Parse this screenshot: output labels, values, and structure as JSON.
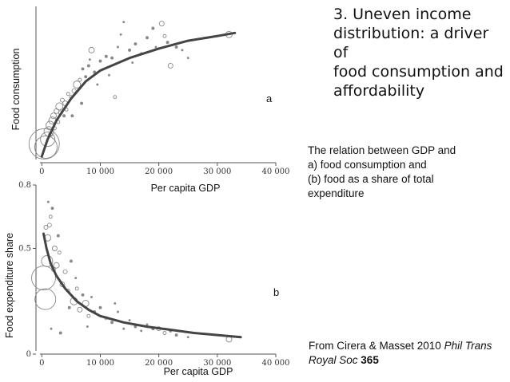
{
  "title": {
    "lines": [
      "3. Uneven income",
      "distribution: a driver of",
      "food consumption and",
      "affordability"
    ]
  },
  "description": {
    "lines": [
      "The relation between GDP and",
      "a) food consumption and",
      "(b) food as a share of total",
      "expenditure"
    ]
  },
  "source": {
    "prefix": "From Cirera & Masset 2010 ",
    "journal": "Phil Trans Royal Soc",
    "volume": "365"
  },
  "chart_data": [
    {
      "type": "scatter",
      "panel_label": "a",
      "xlabel": "Per capita GDP",
      "ylabel": "Food consumption",
      "xlim": [
        -1000,
        40000
      ],
      "ylim": [
        0,
        100
      ],
      "x_ticks": [
        0,
        10000,
        20000,
        30000,
        40000
      ],
      "x_tick_labels": [
        "0",
        "10 000",
        "20 000",
        "30 000",
        "40 000"
      ],
      "y_ticks": [],
      "y_tick_labels": [],
      "colors": {
        "points": "#888888",
        "fit": "#444444",
        "axis": "#555555"
      },
      "points": [
        {
          "x": 400,
          "y": 12,
          "s": 38
        },
        {
          "x": 700,
          "y": 10,
          "s": 28
        },
        {
          "x": 1000,
          "y": 15,
          "s": 18
        },
        {
          "x": 1200,
          "y": 20,
          "s": 12
        },
        {
          "x": 1400,
          "y": 24,
          "s": 10
        },
        {
          "x": 1800,
          "y": 27,
          "s": 9
        },
        {
          "x": 2000,
          "y": 30,
          "s": 7
        },
        {
          "x": 2500,
          "y": 33,
          "s": 6
        },
        {
          "x": 3000,
          "y": 36,
          "s": 9
        },
        {
          "x": 3200,
          "y": 32,
          "s": 5
        },
        {
          "x": 3500,
          "y": 40,
          "s": 5
        },
        {
          "x": 4000,
          "y": 38,
          "s": 6
        },
        {
          "x": 4200,
          "y": 34,
          "s": 4
        },
        {
          "x": 4500,
          "y": 44,
          "s": 4
        },
        {
          "x": 5000,
          "y": 42,
          "s": 4
        },
        {
          "x": 5500,
          "y": 46,
          "s": 5
        },
        {
          "x": 6000,
          "y": 50,
          "s": 9
        },
        {
          "x": 6500,
          "y": 53,
          "s": 4
        },
        {
          "x": 7000,
          "y": 60,
          "s": 3
        },
        {
          "x": 7500,
          "y": 55,
          "s": 3
        },
        {
          "x": 8000,
          "y": 62,
          "s": 3
        },
        {
          "x": 8500,
          "y": 72,
          "s": 7
        },
        {
          "x": 9000,
          "y": 58,
          "s": 3
        },
        {
          "x": 10000,
          "y": 65,
          "s": 3
        },
        {
          "x": 11000,
          "y": 68,
          "s": 3
        },
        {
          "x": 12000,
          "y": 67,
          "s": 3
        },
        {
          "x": 12500,
          "y": 42,
          "s": 4
        },
        {
          "x": 13000,
          "y": 74,
          "s": 2
        },
        {
          "x": 14000,
          "y": 90,
          "s": 2
        },
        {
          "x": 15000,
          "y": 72,
          "s": 3
        },
        {
          "x": 16000,
          "y": 76,
          "s": 3
        },
        {
          "x": 17000,
          "y": 70,
          "s": 2
        },
        {
          "x": 18000,
          "y": 80,
          "s": 3
        },
        {
          "x": 19000,
          "y": 86,
          "s": 3
        },
        {
          "x": 20500,
          "y": 89,
          "s": 6
        },
        {
          "x": 21000,
          "y": 81,
          "s": 4
        },
        {
          "x": 21500,
          "y": 77,
          "s": 3
        },
        {
          "x": 22000,
          "y": 62,
          "s": 6
        },
        {
          "x": 23000,
          "y": 74,
          "s": 3
        },
        {
          "x": 24000,
          "y": 72,
          "s": 2
        },
        {
          "x": 25000,
          "y": 67,
          "s": 2
        },
        {
          "x": 32000,
          "y": 82,
          "s": 8
        },
        {
          "x": 1500,
          "y": 18,
          "s": 5
        },
        {
          "x": 2200,
          "y": 22,
          "s": 4
        },
        {
          "x": 2800,
          "y": 26,
          "s": 4
        },
        {
          "x": 3800,
          "y": 30,
          "s": 3
        },
        {
          "x": 6800,
          "y": 38,
          "s": 3
        },
        {
          "x": 9500,
          "y": 50,
          "s": 2
        },
        {
          "x": 11500,
          "y": 56,
          "s": 2
        },
        {
          "x": 13500,
          "y": 82,
          "s": 2
        },
        {
          "x": 15500,
          "y": 64,
          "s": 2
        },
        {
          "x": 19500,
          "y": 74,
          "s": 2
        },
        {
          "x": 8200,
          "y": 66,
          "s": 2
        },
        {
          "x": 5200,
          "y": 30,
          "s": 3
        }
      ],
      "fit_line": [
        {
          "x": 0,
          "y": 4
        },
        {
          "x": 1000,
          "y": 15
        },
        {
          "x": 2500,
          "y": 27
        },
        {
          "x": 5000,
          "y": 41
        },
        {
          "x": 7500,
          "y": 52
        },
        {
          "x": 10000,
          "y": 59
        },
        {
          "x": 15000,
          "y": 67
        },
        {
          "x": 20000,
          "y": 73
        },
        {
          "x": 25000,
          "y": 78
        },
        {
          "x": 30000,
          "y": 81
        },
        {
          "x": 33000,
          "y": 83
        }
      ]
    },
    {
      "type": "scatter",
      "panel_label": "b",
      "xlabel": "Per capita GDP",
      "ylabel": "Food expenditure share",
      "xlim": [
        -1000,
        40000
      ],
      "ylim": [
        0,
        0.8
      ],
      "x_ticks": [
        0,
        10000,
        20000,
        30000,
        40000
      ],
      "x_tick_labels": [
        "0",
        "10 000",
        "20 000",
        "30 000",
        "40 000"
      ],
      "y_ticks": [
        0,
        0.5,
        0.8
      ],
      "y_tick_labels": [
        "0",
        "0.5",
        "0.8"
      ],
      "colors": {
        "points": "#888888",
        "fit": "#444444",
        "axis": "#555555"
      },
      "points": [
        {
          "x": 300,
          "y": 0.36,
          "s": 30
        },
        {
          "x": 600,
          "y": 0.26,
          "s": 26
        },
        {
          "x": 900,
          "y": 0.44,
          "s": 14
        },
        {
          "x": 1000,
          "y": 0.55,
          "s": 8
        },
        {
          "x": 1300,
          "y": 0.61,
          "s": 5
        },
        {
          "x": 1500,
          "y": 0.65,
          "s": 4
        },
        {
          "x": 1800,
          "y": 0.69,
          "s": 3
        },
        {
          "x": 2200,
          "y": 0.5,
          "s": 6
        },
        {
          "x": 2500,
          "y": 0.42,
          "s": 7
        },
        {
          "x": 3000,
          "y": 0.48,
          "s": 4
        },
        {
          "x": 3500,
          "y": 0.33,
          "s": 6
        },
        {
          "x": 4000,
          "y": 0.39,
          "s": 5
        },
        {
          "x": 4500,
          "y": 0.3,
          "s": 4
        },
        {
          "x": 5000,
          "y": 0.44,
          "s": 3
        },
        {
          "x": 5500,
          "y": 0.25,
          "s": 9
        },
        {
          "x": 6000,
          "y": 0.31,
          "s": 4
        },
        {
          "x": 6500,
          "y": 0.21,
          "s": 6
        },
        {
          "x": 7000,
          "y": 0.28,
          "s": 3
        },
        {
          "x": 7500,
          "y": 0.24,
          "s": 8
        },
        {
          "x": 8000,
          "y": 0.18,
          "s": 4
        },
        {
          "x": 9000,
          "y": 0.2,
          "s": 3
        },
        {
          "x": 10000,
          "y": 0.22,
          "s": 3
        },
        {
          "x": 11000,
          "y": 0.17,
          "s": 4
        },
        {
          "x": 12000,
          "y": 0.15,
          "s": 3
        },
        {
          "x": 13000,
          "y": 0.2,
          "s": 2
        },
        {
          "x": 14000,
          "y": 0.12,
          "s": 2
        },
        {
          "x": 15000,
          "y": 0.16,
          "s": 2
        },
        {
          "x": 16000,
          "y": 0.13,
          "s": 3
        },
        {
          "x": 17000,
          "y": 0.11,
          "s": 2
        },
        {
          "x": 18000,
          "y": 0.14,
          "s": 2
        },
        {
          "x": 19000,
          "y": 0.12,
          "s": 3
        },
        {
          "x": 20000,
          "y": 0.12,
          "s": 5
        },
        {
          "x": 21000,
          "y": 0.1,
          "s": 4
        },
        {
          "x": 22000,
          "y": 0.11,
          "s": 3
        },
        {
          "x": 23000,
          "y": 0.09,
          "s": 3
        },
        {
          "x": 25000,
          "y": 0.08,
          "s": 2
        },
        {
          "x": 32000,
          "y": 0.07,
          "s": 7
        },
        {
          "x": 700,
          "y": 0.6,
          "s": 5
        },
        {
          "x": 1100,
          "y": 0.72,
          "s": 2
        },
        {
          "x": 2800,
          "y": 0.56,
          "s": 3
        },
        {
          "x": 1600,
          "y": 0.12,
          "s": 2
        },
        {
          "x": 3200,
          "y": 0.1,
          "s": 3
        },
        {
          "x": 5800,
          "y": 0.36,
          "s": 2
        },
        {
          "x": 8500,
          "y": 0.27,
          "s": 2
        },
        {
          "x": 12500,
          "y": 0.24,
          "s": 2
        },
        {
          "x": 4700,
          "y": 0.22,
          "s": 3
        },
        {
          "x": 7800,
          "y": 0.13,
          "s": 2
        },
        {
          "x": 2000,
          "y": 0.4,
          "s": 5
        }
      ],
      "fit_line": [
        {
          "x": 300,
          "y": 0.57
        },
        {
          "x": 800,
          "y": 0.5
        },
        {
          "x": 1500,
          "y": 0.43
        },
        {
          "x": 2500,
          "y": 0.37
        },
        {
          "x": 4000,
          "y": 0.31
        },
        {
          "x": 6000,
          "y": 0.25
        },
        {
          "x": 8000,
          "y": 0.21
        },
        {
          "x": 10000,
          "y": 0.18
        },
        {
          "x": 14000,
          "y": 0.15
        },
        {
          "x": 18000,
          "y": 0.13
        },
        {
          "x": 22000,
          "y": 0.115
        },
        {
          "x": 26000,
          "y": 0.1
        },
        {
          "x": 30000,
          "y": 0.09
        },
        {
          "x": 34000,
          "y": 0.08
        }
      ]
    }
  ]
}
